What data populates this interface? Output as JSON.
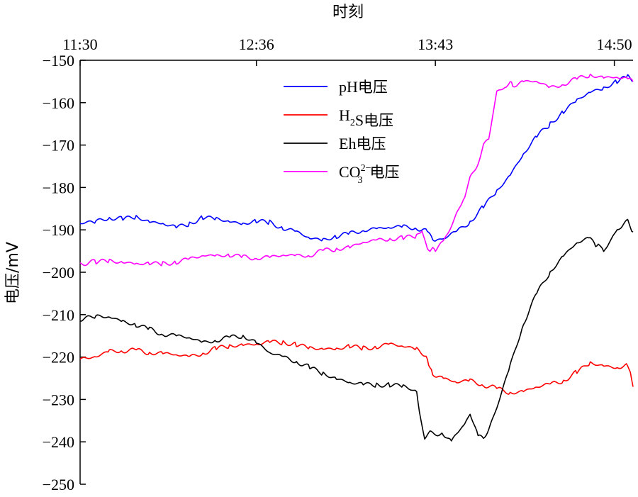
{
  "chart_data": {
    "type": "line",
    "xlabel": "时刻",
    "ylabel": "电压/mV",
    "x_ticks": [
      "11:30",
      "12:36",
      "13:43",
      "14:50"
    ],
    "x_tick_minutes": [
      690,
      756,
      823,
      890
    ],
    "xlim_minutes": [
      690,
      897
    ],
    "ylim": [
      -250,
      -150
    ],
    "y_ticks": [
      -150,
      -160,
      -170,
      -180,
      -190,
      -200,
      -210,
      -220,
      -230,
      -240,
      -250
    ],
    "y_tick_labels": [
      "−150",
      "−160",
      "−170",
      "−180",
      "−190",
      "−200",
      "−210",
      "−220",
      "−230",
      "−240",
      "−250"
    ],
    "grid": false,
    "legend_position": "top-center",
    "series": [
      {
        "name": "pH电压",
        "legend": {
          "base": "pH电压"
        },
        "color": "#0000ff",
        "x": [
          690,
          696,
          701,
          706,
          711,
          716,
          721,
          726,
          731,
          736,
          741,
          746,
          751,
          756,
          761,
          766,
          771,
          776,
          781,
          786,
          791,
          796,
          801,
          806,
          811,
          816,
          820,
          822,
          823,
          826,
          831,
          836,
          841,
          846,
          851,
          856,
          861,
          866,
          871,
          876,
          881,
          886,
          891,
          895,
          897
        ],
        "y": [
          -188.5,
          -188,
          -187,
          -187.5,
          -187,
          -188,
          -188.5,
          -189.5,
          -188.5,
          -187,
          -187.5,
          -188,
          -188.5,
          -188,
          -188.3,
          -189.5,
          -190.5,
          -192,
          -192.3,
          -191.5,
          -191,
          -190,
          -189.7,
          -189.5,
          -189.2,
          -189.5,
          -190.5,
          -192.5,
          -192.5,
          -192,
          -190.5,
          -188,
          -184.5,
          -181,
          -177,
          -172,
          -168,
          -165,
          -162,
          -159.5,
          -157.5,
          -156.5,
          -155,
          -154,
          -155
        ]
      },
      {
        "name": "H₂S电压",
        "legend": {
          "base": "H",
          "sub": "2",
          "mid": "S电压"
        },
        "color": "#ff0000",
        "x": [
          690,
          696,
          701,
          706,
          711,
          716,
          721,
          726,
          731,
          736,
          741,
          746,
          751,
          756,
          761,
          766,
          771,
          776,
          781,
          786,
          791,
          796,
          801,
          806,
          811,
          816,
          820,
          821,
          822,
          826,
          831,
          836,
          841,
          846,
          851,
          856,
          861,
          866,
          871,
          876,
          881,
          886,
          891,
          895,
          896,
          897
        ],
        "y": [
          -220.5,
          -220,
          -218.5,
          -218.5,
          -218.5,
          -219,
          -219,
          -219.5,
          -220,
          -219,
          -218,
          -217.5,
          -217,
          -217,
          -216.5,
          -216.5,
          -217,
          -218,
          -218,
          -218,
          -217.5,
          -218,
          -217.5,
          -217,
          -217.5,
          -218,
          -220,
          -223,
          -224,
          -225,
          -226,
          -225.5,
          -226.5,
          -227.5,
          -228.5,
          -228,
          -227,
          -226.5,
          -225.5,
          -223.5,
          -221.5,
          -222,
          -222.5,
          -222,
          -224,
          -227
        ]
      },
      {
        "name": "Eh电压",
        "legend": {
          "base": "Eh电压"
        },
        "color": "#000000",
        "x": [
          690,
          696,
          701,
          706,
          711,
          716,
          721,
          726,
          731,
          736,
          741,
          746,
          751,
          756,
          761,
          766,
          771,
          776,
          781,
          786,
          791,
          796,
          801,
          806,
          811,
          816,
          817,
          819,
          821,
          826,
          829,
          831,
          834,
          836,
          839,
          841,
          843,
          846,
          851,
          856,
          861,
          866,
          871,
          876,
          881,
          883,
          884,
          886,
          888,
          891,
          893,
          895,
          897
        ],
        "y": [
          -211,
          -210.5,
          -210.5,
          -211.5,
          -212.5,
          -213.5,
          -214.5,
          -215,
          -215.5,
          -216.5,
          -216,
          -215.5,
          -215,
          -216.5,
          -219,
          -220,
          -221,
          -222.5,
          -224,
          -225,
          -226,
          -226.5,
          -226.5,
          -226.5,
          -227,
          -228,
          -233,
          -239,
          -238,
          -238,
          -240,
          -238,
          -236,
          -233,
          -239,
          -239,
          -237,
          -232,
          -222,
          -212,
          -205,
          -200,
          -196,
          -193,
          -192,
          -194,
          -193,
          -195.5,
          -193,
          -190,
          -189,
          -188,
          -190.5
        ]
      },
      {
        "name": "CO₃²⁻电压",
        "legend": {
          "base": "CO",
          "sub": "3",
          "sup": "2−",
          "mid": "电压"
        },
        "color": "#ff00ff",
        "x": [
          690,
          696,
          701,
          706,
          711,
          716,
          721,
          726,
          731,
          736,
          741,
          746,
          751,
          756,
          761,
          766,
          771,
          776,
          781,
          786,
          791,
          796,
          801,
          806,
          811,
          816,
          818,
          820,
          821,
          822,
          823,
          826,
          829,
          831,
          834,
          836,
          839,
          841,
          843,
          846,
          849,
          851,
          852,
          856,
          861,
          866,
          871,
          876,
          881,
          886,
          891,
          895,
          897
        ],
        "y": [
          -198,
          -197.5,
          -197.5,
          -197.5,
          -198,
          -198,
          -198,
          -197.5,
          -197,
          -196,
          -196,
          -196,
          -196.5,
          -196.5,
          -196.5,
          -196,
          -196,
          -196,
          -195,
          -194.5,
          -194,
          -193,
          -192.5,
          -192,
          -192,
          -191.5,
          -190,
          -194.5,
          -195,
          -194.5,
          -194.5,
          -193,
          -189,
          -186,
          -182,
          -178,
          -174,
          -170,
          -168.5,
          -157.5,
          -156,
          -155.5,
          -156,
          -155,
          -155,
          -156.5,
          -155.5,
          -154.5,
          -153.5,
          -154,
          -154,
          -154.5,
          -155
        ]
      }
    ]
  }
}
